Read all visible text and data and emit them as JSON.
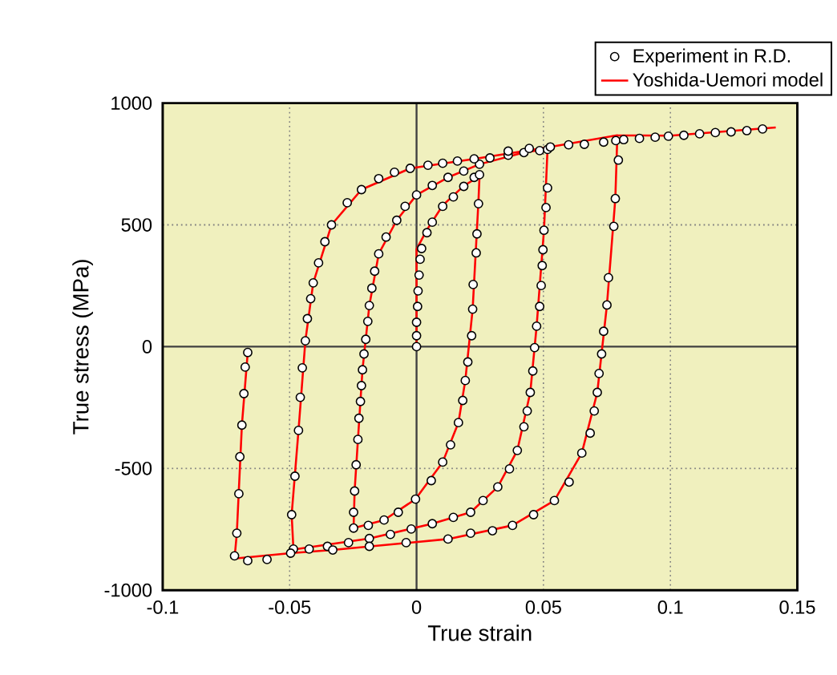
{
  "chart_data": {
    "type": "scatter",
    "xlabel": "True strain",
    "ylabel": "True stress (MPa)",
    "xlim": [
      -0.1,
      0.15
    ],
    "xticks": [
      -0.1,
      -0.05,
      0,
      0.05,
      0.1,
      0.15
    ],
    "ylim": [
      -1000,
      1000
    ],
    "yticks": [
      -1000,
      -500,
      0,
      500,
      1000
    ],
    "grid": true,
    "legend": "top right",
    "series": [
      {
        "name": "Experiment in R.D.",
        "type": "scatter",
        "marker": "circle",
        "color": "#000000",
        "x": [
          0,
          0,
          0,
          0.0004,
          0.0006,
          0.001,
          0.0014,
          0.002,
          0.0041,
          0.0062,
          0.0103,
          0.0145,
          0.0186,
          0.0227,
          0.0248,
          0.0244,
          0.0238,
          0.0235,
          0.0223,
          0.0221,
          0.0217,
          0.0202,
          0.0192,
          0.0182,
          0.0165,
          0.0134,
          0.0103,
          0.0058,
          -0.0004,
          -0.0072,
          -0.0128,
          -0.019,
          -0.0248,
          -0.0248,
          -0.0244,
          -0.0238,
          -0.0231,
          -0.0227,
          -0.0221,
          -0.0217,
          -0.0213,
          -0.0207,
          -0.02,
          -0.0192,
          -0.0186,
          -0.0176,
          -0.0165,
          -0.0149,
          -0.012,
          -0.0078,
          -0.0045,
          0,
          0.0062,
          0.0124,
          0.0186,
          0.0248,
          0.0289,
          0.0361,
          0.0423,
          0.0485,
          0.0516,
          0.0516,
          0.051,
          0.0502,
          0.0498,
          0.0495,
          0.0491,
          0.0485,
          0.0473,
          0.0465,
          0.0458,
          0.0448,
          0.0436,
          0.0423,
          0.0397,
          0.0366,
          0.032,
          0.0262,
          0.0213,
          0.0145,
          0.0062,
          -0.0021,
          -0.0103,
          -0.0186,
          -0.0268,
          -0.0351,
          -0.0423,
          -0.0485,
          -0.0492,
          -0.0479,
          -0.0465,
          -0.0458,
          -0.045,
          -0.0438,
          -0.043,
          -0.0417,
          -0.0407,
          -0.0386,
          -0.0361,
          -0.0335,
          -0.0273,
          -0.0217,
          -0.0149,
          -0.0087,
          -0.0025,
          0.0045,
          0.0103,
          0.0161,
          0.0227,
          0.0361,
          0.0444,
          0.0527,
          0.0599,
          0.0661,
          0.0737,
          0.0785,
          0.0795,
          0.0783,
          0.0777,
          0.0756,
          0.075,
          0.0737,
          0.0729,
          0.0719,
          0.0712,
          0.07,
          0.0684,
          0.0651,
          0.0601,
          0.0543,
          0.0461,
          0.0378,
          0.0299,
          0.0213,
          0.0124,
          -0.0041,
          -0.0186,
          -0.033,
          -0.0496,
          -0.0589,
          -0.0665,
          -0.0717,
          -0.0708,
          -0.07,
          -0.0696,
          -0.0688,
          -0.068,
          -0.0675,
          -0.0665,
          null,
          0.0816,
          0.0878,
          0.094,
          0.0992,
          0.1053,
          0.1115,
          0.1177,
          0.1239,
          0.1301,
          0.1363
        ],
        "values": [
          0,
          45,
          100,
          165,
          229,
          294,
          359,
          403,
          468,
          511,
          576,
          615,
          658,
          695,
          706,
          587,
          463,
          385,
          255,
          154,
          45,
          -63,
          -139,
          -221,
          -312,
          -403,
          -474,
          -550,
          -626,
          -680,
          -712,
          -734,
          -745,
          -680,
          -593,
          -485,
          -381,
          -294,
          -225,
          -160,
          -95,
          -30,
          30,
          104,
          169,
          240,
          310,
          381,
          450,
          519,
          576,
          623,
          662,
          695,
          721,
          749,
          775,
          786,
          797,
          805,
          810,
          652,
          571,
          478,
          398,
          333,
          251,
          165,
          84,
          -4,
          -100,
          -188,
          -264,
          -329,
          -426,
          -502,
          -576,
          -632,
          -680,
          -701,
          -727,
          -749,
          -771,
          -788,
          -805,
          -820,
          -831,
          -831,
          -690,
          -532,
          -344,
          -208,
          -87,
          24,
          115,
          197,
          262,
          344,
          431,
          500,
          591,
          645,
          690,
          716,
          732,
          745,
          753,
          762,
          771,
          803,
          814,
          820,
          829,
          831,
          840,
          846,
          766,
          608,
          494,
          283,
          171,
          63,
          -30,
          -110,
          -188,
          -264,
          -355,
          -437,
          -556,
          -632,
          -690,
          -734,
          -756,
          -766,
          -790,
          -805,
          -820,
          -835,
          -848,
          -874,
          -879,
          -859,
          -766,
          -604,
          -452,
          -322,
          -193,
          -84,
          -24,
          null,
          850,
          855,
          860,
          864,
          868,
          874,
          879,
          882,
          887,
          894
        ]
      },
      {
        "name": "Yoshida-Uemori model",
        "type": "line",
        "marker": "none",
        "line_style": "solid",
        "color": "#ff0000",
        "x": [
          0,
          0,
          0.0041,
          0.0103,
          0.0186,
          0.0248,
          0.0244,
          0.0221,
          0.0192,
          0.0165,
          0.0103,
          -0.0004,
          -0.0128,
          -0.0248,
          -0.0244,
          -0.0213,
          -0.0186,
          -0.0149,
          -0.0078,
          0,
          0.0124,
          0.0248,
          0.0423,
          0.0516,
          0.0502,
          0.0473,
          0.0448,
          0.0397,
          0.032,
          0.0213,
          0.0062,
          -0.0186,
          -0.0485,
          -0.0492,
          -0.0465,
          -0.0438,
          -0.0407,
          -0.0335,
          -0.0217,
          -0.0025,
          0.0227,
          0.0527,
          0.0791,
          0.0783,
          0.075,
          0.0712,
          0.0651,
          0.0543,
          0.0378,
          0.0124,
          -0.033,
          -0.0496,
          -0.0717,
          -0.0708,
          -0.0688,
          -0.0665,
          null,
          0.0791,
          0.1,
          0.1415
        ],
        "values": [
          0,
          400,
          480,
          580,
          660,
          700,
          600,
          154,
          -139,
          -312,
          -474,
          -626,
          -712,
          -745,
          -593,
          -95,
          169,
          381,
          519,
          623,
          695,
          749,
          797,
          812,
          478,
          84,
          -188,
          -426,
          -576,
          -680,
          -727,
          -788,
          -833,
          -690,
          -344,
          24,
          262,
          500,
          645,
          732,
          771,
          820,
          868,
          608,
          171,
          -188,
          -437,
          -632,
          -734,
          -790,
          -835,
          -848,
          -870,
          -766,
          -322,
          -24,
          null,
          868,
          866,
          900
        ]
      }
    ]
  }
}
